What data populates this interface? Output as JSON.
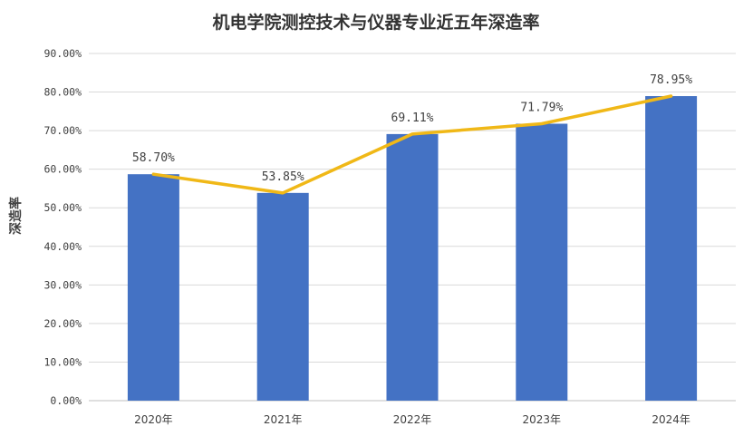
{
  "chart_data": {
    "type": "bar",
    "title": "机电学院测控技术与仪器专业近五年深造率",
    "xlabel": "",
    "ylabel": "深造率",
    "ylim": [
      0,
      90
    ],
    "yticks": [
      0,
      10,
      20,
      30,
      40,
      50,
      60,
      70,
      80,
      90
    ],
    "ytick_labels": [
      "0.00%",
      "10.00%",
      "20.00%",
      "30.00%",
      "40.00%",
      "50.00%",
      "60.00%",
      "70.00%",
      "80.00%",
      "90.00%"
    ],
    "categories": [
      "2020年",
      "2021年",
      "2022年",
      "2023年",
      "2024年"
    ],
    "values": [
      58.7,
      53.85,
      69.11,
      71.79,
      78.95
    ],
    "data_labels": [
      "58.70%",
      "53.85%",
      "69.11%",
      "71.79%",
      "78.95%"
    ],
    "line_values": [
      58.7,
      53.85,
      69.11,
      71.79,
      78.95
    ],
    "grid": true,
    "colors": {
      "bar": "#4472c4",
      "line": "#f0b817",
      "grid": "#d9d9d9",
      "text": "#404040",
      "title": "#333333"
    }
  }
}
